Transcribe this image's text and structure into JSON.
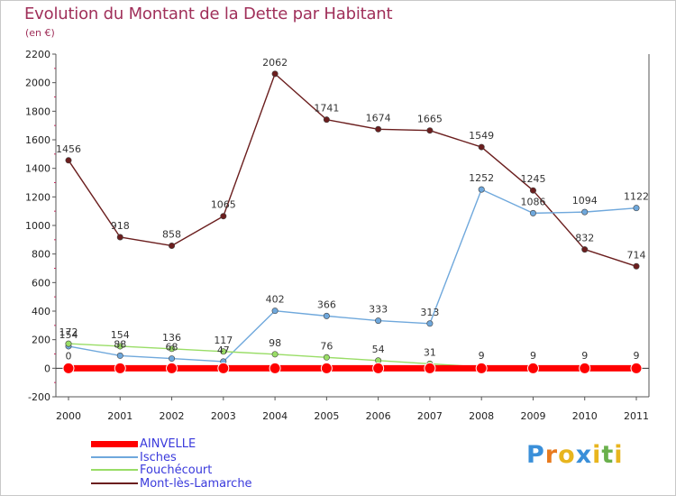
{
  "chart_data": {
    "type": "line",
    "title": "Evolution du Montant de la Dette par Habitant",
    "subtitle": "(en €)",
    "x": [
      "2000",
      "2001",
      "2002",
      "2003",
      "2004",
      "2005",
      "2006",
      "2007",
      "2008",
      "2009",
      "2010",
      "2011"
    ],
    "ylim": [
      -200,
      2200
    ],
    "yticks": [
      -200,
      0,
      200,
      400,
      600,
      800,
      1000,
      1200,
      1400,
      1600,
      1800,
      2000,
      2200
    ],
    "grid": false,
    "legend_position": "bottom-left",
    "series": [
      {
        "name": "AINVELLE",
        "color": "#ff0000",
        "values": [
          0,
          0,
          0,
          0,
          0,
          0,
          0,
          0,
          0,
          0,
          0,
          0
        ],
        "labels": [
          "0",
          "",
          "",
          "",
          "",
          "",
          "",
          "",
          "",
          "",
          "",
          ""
        ]
      },
      {
        "name": "Isches",
        "color": "#6fa8dc",
        "values": [
          154,
          88,
          68,
          47,
          402,
          366,
          333,
          313,
          1252,
          1086,
          1094,
          1122
        ],
        "labels": [
          "154",
          "88",
          "68",
          "47",
          "402",
          "366",
          "333",
          "313",
          "1252",
          "1086",
          "1094",
          "1122"
        ]
      },
      {
        "name": "Fouchécourt",
        "color": "#99dd66",
        "values": [
          172,
          154,
          136,
          117,
          98,
          76,
          54,
          31,
          9,
          9,
          9,
          9
        ],
        "labels": [
          "172",
          "154",
          "136",
          "117",
          "98",
          "76",
          "54",
          "31",
          "9",
          "9",
          "9",
          "9"
        ]
      },
      {
        "name": "Mont-lès-Lamarche",
        "color": "#6b1e1e",
        "values": [
          1456,
          918,
          858,
          1065,
          2062,
          1741,
          1674,
          1665,
          1549,
          1245,
          832,
          714
        ],
        "labels": [
          "1456",
          "918",
          "858",
          "1065",
          "2062",
          "1741",
          "1674",
          "1665",
          "1549",
          "1245",
          "832",
          "714"
        ]
      }
    ]
  },
  "legend": [
    {
      "label": "AINVELLE"
    },
    {
      "label": "Isches"
    },
    {
      "label": "Fouchécourt"
    },
    {
      "label": "Mont-lès-Lamarche"
    }
  ],
  "brand": {
    "letters": [
      "P",
      "r",
      "o",
      "x",
      "i",
      "t",
      "i"
    ],
    "colors": [
      "#3a8fd9",
      "#e87a1e",
      "#e8b51e",
      "#3a8fd9",
      "#e8b51e",
      "#6ab04c",
      "#e8b51e"
    ]
  }
}
